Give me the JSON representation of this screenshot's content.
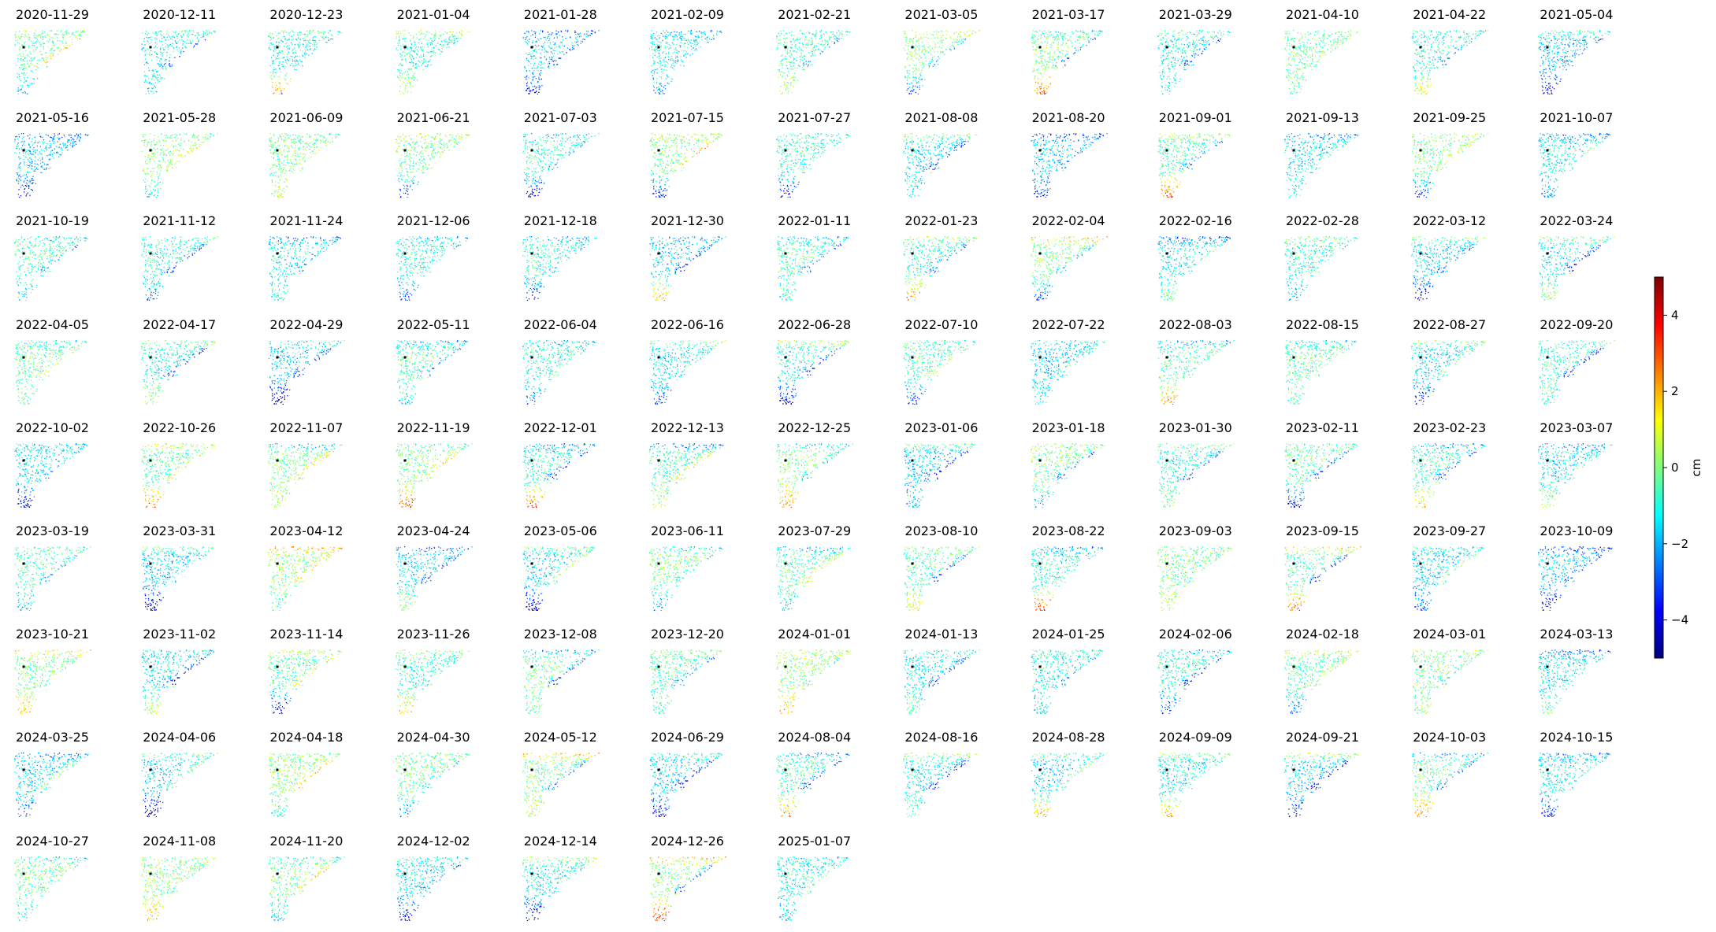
{
  "chart_data": {
    "type": "heatmap",
    "title": "",
    "panel_titles": [
      "2020-11-29",
      "2020-12-11",
      "2020-12-23",
      "2021-01-04",
      "2021-01-28",
      "2021-02-09",
      "2021-02-21",
      "2021-03-05",
      "2021-03-17",
      "2021-03-29",
      "2021-04-10",
      "2021-04-22",
      "2021-05-04",
      "2021-05-16",
      "2021-05-28",
      "2021-06-09",
      "2021-06-21",
      "2021-07-03",
      "2021-07-15",
      "2021-07-27",
      "2021-08-08",
      "2021-08-20",
      "2021-09-01",
      "2021-09-13",
      "2021-09-25",
      "2021-10-07",
      "2021-10-19",
      "2021-11-12",
      "2021-11-24",
      "2021-12-06",
      "2021-12-18",
      "2021-12-30",
      "2022-01-11",
      "2022-01-23",
      "2022-02-04",
      "2022-02-16",
      "2022-02-28",
      "2022-03-12",
      "2022-03-24",
      "2022-04-05",
      "2022-04-17",
      "2022-04-29",
      "2022-05-11",
      "2022-06-04",
      "2022-06-16",
      "2022-06-28",
      "2022-07-10",
      "2022-07-22",
      "2022-08-03",
      "2022-08-15",
      "2022-08-27",
      "2022-09-20",
      "2022-10-02",
      "2022-10-26",
      "2022-11-07",
      "2022-11-19",
      "2022-12-01",
      "2022-12-13",
      "2022-12-25",
      "2023-01-06",
      "2023-01-18",
      "2023-01-30",
      "2023-02-11",
      "2023-02-23",
      "2023-03-07",
      "2023-03-19",
      "2023-03-31",
      "2023-04-12",
      "2023-04-24",
      "2023-05-06",
      "2023-06-11",
      "2023-07-29",
      "2023-08-10",
      "2023-08-22",
      "2023-09-03",
      "2023-09-15",
      "2023-09-27",
      "2023-10-09",
      "2023-10-21",
      "2023-11-02",
      "2023-11-14",
      "2023-11-26",
      "2023-12-08",
      "2023-12-20",
      "2024-01-01",
      "2024-01-13",
      "2024-01-25",
      "2024-02-06",
      "2024-02-18",
      "2024-03-01",
      "2024-03-13",
      "2024-03-25",
      "2024-04-06",
      "2024-04-18",
      "2024-04-30",
      "2024-05-12",
      "2024-06-29",
      "2024-08-04",
      "2024-08-16",
      "2024-08-28",
      "2024-09-09",
      "2024-09-21",
      "2024-10-03",
      "2024-10-15",
      "2024-10-27",
      "2024-11-08",
      "2024-11-20",
      "2024-12-02",
      "2024-12-14",
      "2024-12-26",
      "2025-01-07"
    ],
    "panel_columns": 13,
    "colorbar": {
      "label": "cm",
      "range": [
        -5,
        5
      ],
      "ticks": [
        4,
        2,
        0,
        -2,
        -4
      ],
      "tick_labels": [
        "4",
        "2",
        "0",
        "−2",
        "−4"
      ],
      "colormap": "jet"
    },
    "grid": false,
    "legend": "none"
  },
  "colors": {
    "jet_stops": [
      "#00007f",
      "#0000ff",
      "#007fff",
      "#00ffff",
      "#7fff7f",
      "#ffff00",
      "#ff7f00",
      "#ff0000",
      "#7f0000"
    ],
    "reference_marker": "#000000"
  }
}
